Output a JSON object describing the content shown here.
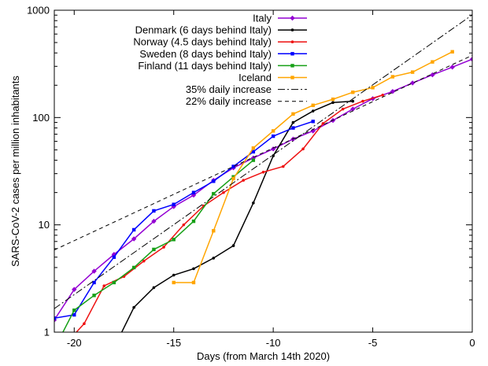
{
  "chart_data": {
    "type": "line",
    "title": "",
    "xlabel": "Days (from March 14th 2020)",
    "ylabel": "SARS-CoV-2 cases per million inhabitants",
    "xlim": [
      -21,
      0
    ],
    "ylim": [
      1,
      1000
    ],
    "yscale": "log",
    "grid": false,
    "legend_position": "top-right",
    "x_ticks": [
      {
        "value": -20,
        "label": "-20"
      },
      {
        "value": -15,
        "label": "-15"
      },
      {
        "value": -10,
        "label": "-10"
      },
      {
        "value": -5,
        "label": "-5"
      },
      {
        "value": 0,
        "label": "0"
      }
    ],
    "y_ticks": [
      {
        "value": 1,
        "label": "1"
      },
      {
        "value": 10,
        "label": "10"
      },
      {
        "value": 100,
        "label": "100"
      },
      {
        "value": 1000,
        "label": "1000"
      }
    ],
    "series": [
      {
        "name": "Italy",
        "color": "#9400d3",
        "marker": "diamond",
        "points": [
          [
            -21,
            1.3
          ],
          [
            -20,
            2.5
          ],
          [
            -19,
            3.7
          ],
          [
            -18,
            5.3
          ],
          [
            -17,
            7.4
          ],
          [
            -16,
            10.8
          ],
          [
            -15,
            14.8
          ],
          [
            -14,
            18.9
          ],
          [
            -13,
            26.0
          ],
          [
            -12,
            34.0
          ],
          [
            -11,
            42.0
          ],
          [
            -10,
            51.0
          ],
          [
            -9,
            63.0
          ],
          [
            -8,
            75.0
          ],
          [
            -7,
            94.0
          ],
          [
            -6,
            120.0
          ],
          [
            -5,
            150.0
          ],
          [
            -4,
            175.0
          ],
          [
            -3,
            210.0
          ],
          [
            -2,
            250.0
          ],
          [
            -1,
            295.0
          ],
          [
            0,
            350.0
          ]
        ]
      },
      {
        "name": "Denmark (6 days behind Italy)",
        "color": "#000000",
        "marker": "dot",
        "points": [
          [
            -17.8,
            0.85
          ],
          [
            -17,
            1.7
          ],
          [
            -16,
            2.6
          ],
          [
            -15,
            3.4
          ],
          [
            -14,
            3.9
          ],
          [
            -13,
            4.9
          ],
          [
            -12,
            6.4
          ],
          [
            -11,
            16.0
          ],
          [
            -10,
            44.0
          ],
          [
            -9,
            90.0
          ],
          [
            -8,
            115.0
          ],
          [
            -7,
            138.0
          ],
          [
            -6,
            142.0
          ]
        ]
      },
      {
        "name": "Norway (4.5 days behind Italy)",
        "color": "#ee1111",
        "marker": "dot",
        "points": [
          [
            -20.6,
            0.5
          ],
          [
            -20,
            0.95
          ],
          [
            -19.5,
            1.2
          ],
          [
            -18.5,
            2.7
          ],
          [
            -17.5,
            3.3
          ],
          [
            -16.5,
            4.6
          ],
          [
            -15.5,
            6.2
          ],
          [
            -14.5,
            10.0
          ],
          [
            -13.5,
            15.0
          ],
          [
            -12.5,
            20.0
          ],
          [
            -11.5,
            26.0
          ],
          [
            -10.5,
            31.0
          ],
          [
            -9.5,
            35.0
          ],
          [
            -8.5,
            51.0
          ],
          [
            -7.5,
            88.0
          ],
          [
            -6.5,
            120.0
          ],
          [
            -5.5,
            142.0
          ],
          [
            -4.5,
            162.0
          ]
        ]
      },
      {
        "name": "Sweden (8 days behind Italy)",
        "color": "#0000ff",
        "marker": "square",
        "points": [
          [
            -21,
            1.35
          ],
          [
            -20,
            1.45
          ],
          [
            -19,
            2.9
          ],
          [
            -18,
            5.0
          ],
          [
            -17,
            9.0
          ],
          [
            -16,
            13.5
          ],
          [
            -15,
            15.5
          ],
          [
            -14,
            20.0
          ],
          [
            -13,
            25.5
          ],
          [
            -12,
            35.0
          ],
          [
            -11,
            48.0
          ],
          [
            -10,
            67.0
          ],
          [
            -9,
            80.0
          ],
          [
            -8,
            92.0
          ]
        ]
      },
      {
        "name": "Finland (11 days behind Italy)",
        "color": "#16a016",
        "marker": "square",
        "points": [
          [
            -21,
            0.7
          ],
          [
            -20,
            1.6
          ],
          [
            -19,
            2.2
          ],
          [
            -18,
            2.9
          ],
          [
            -17,
            4.0
          ],
          [
            -16,
            5.9
          ],
          [
            -15,
            7.3
          ],
          [
            -14,
            10.8
          ],
          [
            -13,
            19.5
          ],
          [
            -12,
            28.0
          ],
          [
            -11,
            40.0
          ]
        ]
      },
      {
        "name": "Iceland",
        "color": "#ffa500",
        "marker": "square",
        "points": [
          [
            -15,
            2.9
          ],
          [
            -14,
            2.9
          ],
          [
            -13,
            8.8
          ],
          [
            -12,
            27.0
          ],
          [
            -11,
            52.0
          ],
          [
            -10,
            75.0
          ],
          [
            -9,
            108.0
          ],
          [
            -8,
            130.0
          ],
          [
            -7,
            148.0
          ],
          [
            -6,
            172.0
          ],
          [
            -5,
            190.0
          ],
          [
            -4,
            240.0
          ],
          [
            -3,
            265.0
          ],
          [
            -2,
            330.0
          ],
          [
            -1,
            410.0
          ]
        ]
      },
      {
        "name": "35% daily increase",
        "color": "#000000",
        "dash": "9,3,2,3",
        "line_only": true,
        "fit": {
          "at_x": -10,
          "value": 45.0,
          "daily_factor": 1.35
        }
      },
      {
        "name": "22% daily increase",
        "color": "#000000",
        "dash": "5,4",
        "line_only": true,
        "fit": {
          "at_x": 0,
          "value": 380.0,
          "daily_factor": 1.22
        }
      }
    ]
  }
}
